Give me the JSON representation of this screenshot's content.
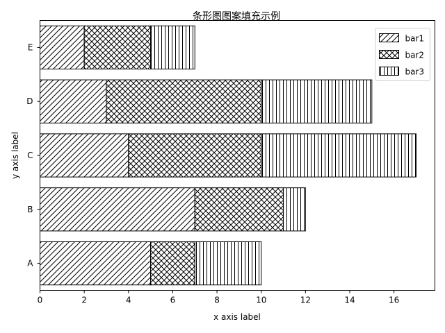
{
  "chart_data": {
    "type": "bar",
    "orientation": "horizontal",
    "stacked": true,
    "title": "条形图图案填充示例",
    "xlabel": "x axis label",
    "ylabel": "y axis label",
    "categories": [
      "A",
      "B",
      "C",
      "D",
      "E"
    ],
    "xlim": [
      0,
      17.85
    ],
    "xticks": [
      0,
      2,
      4,
      6,
      8,
      10,
      12,
      14,
      16
    ],
    "series": [
      {
        "name": "bar1",
        "values": [
          5,
          7,
          4,
          3,
          2
        ],
        "hatch": "//",
        "color": "#ffffff",
        "edgecolor": "#000000"
      },
      {
        "name": "bar2",
        "values": [
          2,
          4,
          6,
          7,
          3
        ],
        "hatch": "xx",
        "color": "#ffffff",
        "edgecolor": "#000000"
      },
      {
        "name": "bar3",
        "values": [
          3,
          1,
          7,
          5,
          2
        ],
        "hatch": "||",
        "color": "#ffffff",
        "edgecolor": "#000000"
      }
    ],
    "legend": {
      "position": "upper right"
    },
    "grid": false
  }
}
